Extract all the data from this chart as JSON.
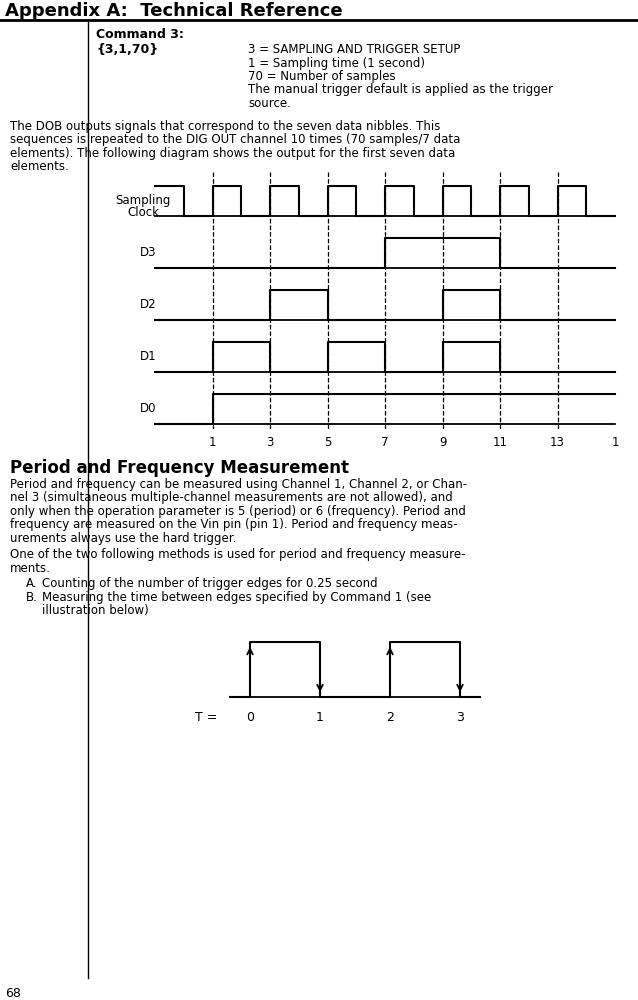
{
  "page_title": "Appendix A:  Technical Reference",
  "page_number": "68",
  "command3_title": "Command 3:",
  "command3_code": "{3,1,70}",
  "command3_desc": [
    "3 = SAMPLING AND TRIGGER SETUP",
    "1 = Sampling time (1 second)",
    "70 = Number of samples",
    "The manual trigger default is applied as the trigger",
    "source."
  ],
  "para1_lines": [
    "The DOB outputs signals that correspond to the seven data nibbles. This",
    "sequences is repeated to the DIG OUT channel 10 times (70 samples/7 data",
    "elements). The following diagram shows the output for the first seven data",
    "elements."
  ],
  "x_ticks": [
    "1",
    "3",
    "5",
    "7",
    "9",
    "11",
    "13",
    "1"
  ],
  "section2_title": "Period and Frequency Measurement",
  "para2_lines": [
    "Period and frequency can be measured using Channel 1, Channel 2, or Chan-",
    "nel 3 (simultaneous multiple-channel measurements are not allowed), and",
    "only when the operation parameter is 5 (period) or 6 (frequency). Period and",
    "frequency are measured on the Vin pin (pin 1). Period and frequency meas-",
    "urements always use the hard trigger."
  ],
  "para3_lines": [
    "One of the two following methods is used for period and frequency measure-",
    "ments."
  ],
  "bullet_A": "Counting of the number of trigger edges for 0.25 second",
  "bullet_B1": "Measuring the time between edges specified by Command 1 (see",
  "bullet_B2": "illustration below)",
  "bg_color": "#ffffff",
  "text_color": "#000000"
}
